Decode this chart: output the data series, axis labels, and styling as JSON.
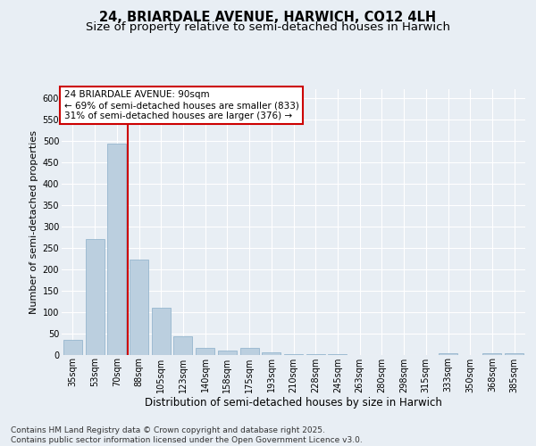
{
  "title_line1": "24, BRIARDALE AVENUE, HARWICH, CO12 4LH",
  "title_line2": "Size of property relative to semi-detached houses in Harwich",
  "xlabel": "Distribution of semi-detached houses by size in Harwich",
  "ylabel": "Number of semi-detached properties",
  "categories": [
    "35sqm",
    "53sqm",
    "70sqm",
    "88sqm",
    "105sqm",
    "123sqm",
    "140sqm",
    "158sqm",
    "175sqm",
    "193sqm",
    "210sqm",
    "228sqm",
    "245sqm",
    "263sqm",
    "280sqm",
    "298sqm",
    "315sqm",
    "333sqm",
    "350sqm",
    "368sqm",
    "385sqm"
  ],
  "values": [
    35,
    270,
    493,
    222,
    110,
    42,
    15,
    10,
    15,
    6,
    1,
    1,
    1,
    0,
    0,
    0,
    0,
    3,
    0,
    3,
    3
  ],
  "bar_color": "#BBCFDF",
  "bar_edge_color": "#8AAEC8",
  "vline_color": "#CC0000",
  "annotation_text": "24 BRIARDALE AVENUE: 90sqm\n← 69% of semi-detached houses are smaller (833)\n31% of semi-detached houses are larger (376) →",
  "annotation_box_color": "#CC0000",
  "annotation_text_color": "#000000",
  "annotation_bg_color": "#FFFFFF",
  "ylim": [
    0,
    620
  ],
  "yticks": [
    0,
    50,
    100,
    150,
    200,
    250,
    300,
    350,
    400,
    450,
    500,
    550,
    600
  ],
  "bg_color": "#E8EEF4",
  "plot_bg_color": "#E8EEF4",
  "footer_text": "Contains HM Land Registry data © Crown copyright and database right 2025.\nContains public sector information licensed under the Open Government Licence v3.0.",
  "title_fontsize": 10.5,
  "subtitle_fontsize": 9.5,
  "xlabel_fontsize": 8.5,
  "ylabel_fontsize": 8,
  "tick_fontsize": 7,
  "footer_fontsize": 6.5,
  "annotation_fontsize": 7.5
}
